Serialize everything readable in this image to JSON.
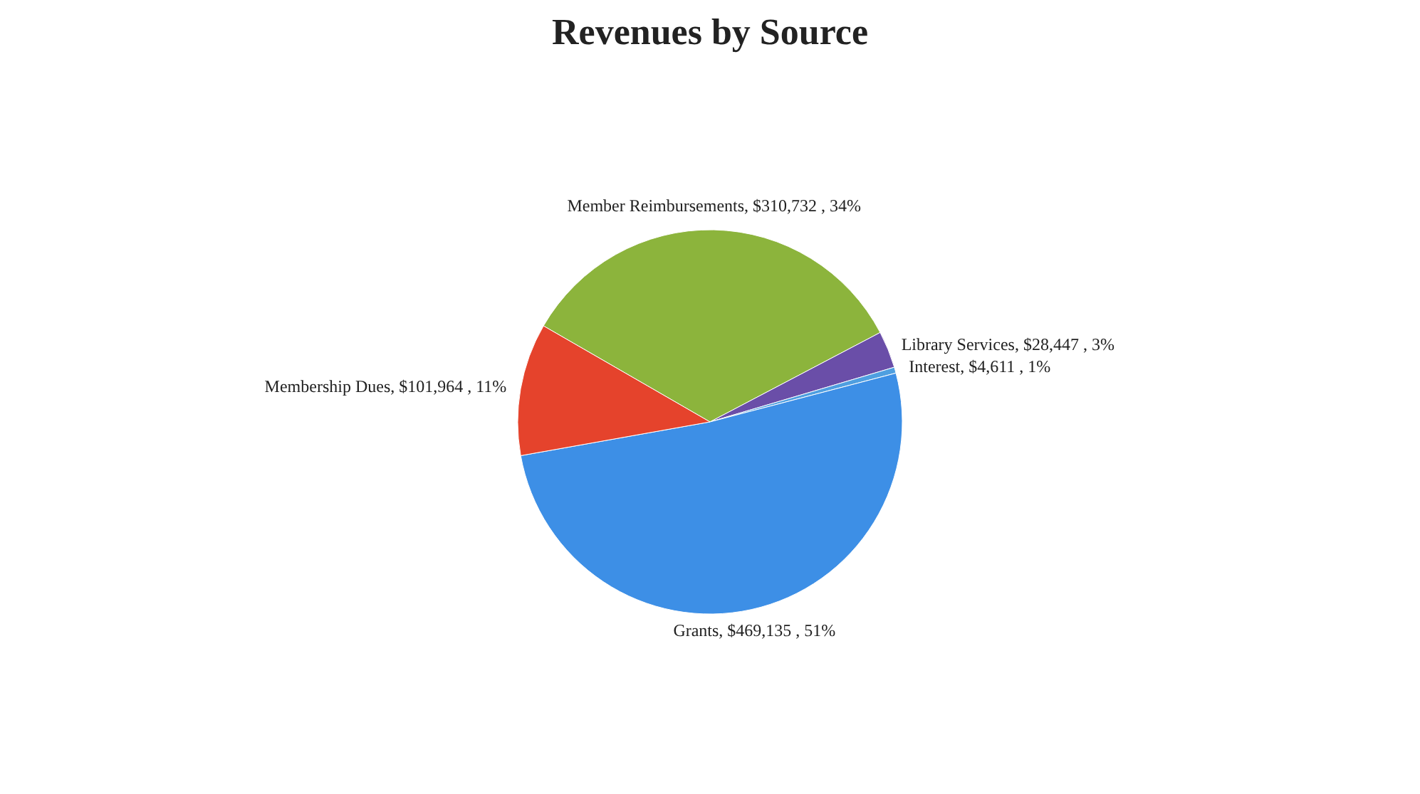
{
  "chart_data": {
    "type": "pie",
    "title": "Revenues by Source",
    "categories": [
      "Member Reimbursements",
      "Library Services",
      "Interest",
      "Grants",
      "Membership Dues"
    ],
    "values": [
      310732,
      28447,
      4611,
      469135,
      101964
    ],
    "value_labels": [
      "$310,732 , 34%",
      "$28,447 , 3%",
      "$4,611 , 1%",
      "$469,135 , 51%",
      "$101,964 , 11%"
    ],
    "colors": [
      "#8cb43c",
      "#6a4ea8",
      "#4f9fe0",
      "#3d8fe6",
      "#e5432c"
    ]
  }
}
